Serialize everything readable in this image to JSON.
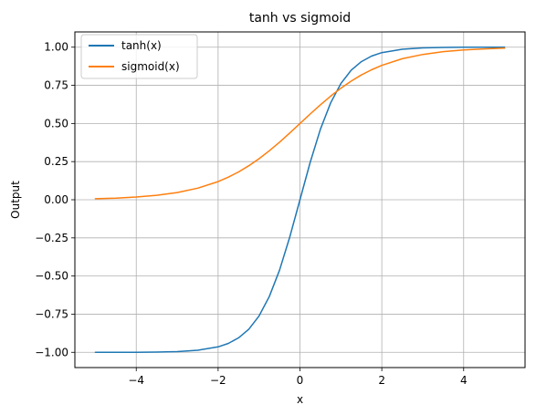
{
  "chart_data": {
    "type": "line",
    "title": "tanh vs sigmoid",
    "xlabel": "x",
    "ylabel": "Output",
    "xlim": [
      -5.5,
      5.5
    ],
    "ylim": [
      -1.1,
      1.1
    ],
    "grid": true,
    "legend_position": "upper-left",
    "x_ticks": [
      -4,
      -2,
      0,
      2,
      4
    ],
    "x_tick_labels": [
      "−4",
      "−2",
      "0",
      "2",
      "4"
    ],
    "y_ticks": [
      -1.0,
      -0.75,
      -0.5,
      -0.25,
      0.0,
      0.25,
      0.5,
      0.75,
      1.0
    ],
    "y_tick_labels": [
      "−1.00",
      "−0.75",
      "−0.50",
      "−0.25",
      "0.00",
      "0.25",
      "0.50",
      "0.75",
      "1.00"
    ],
    "x": [
      -5,
      -4.5,
      -4,
      -3.5,
      -3,
      -2.5,
      -2,
      -1.75,
      -1.5,
      -1.25,
      -1,
      -0.75,
      -0.5,
      -0.25,
      0,
      0.25,
      0.5,
      0.75,
      1,
      1.25,
      1.5,
      1.75,
      2,
      2.5,
      3,
      3.5,
      4,
      4.5,
      5
    ],
    "series": [
      {
        "name": "tanh(x)",
        "color": "#1f77b4",
        "values": [
          -0.9999,
          -0.9998,
          -0.9993,
          -0.9982,
          -0.9951,
          -0.9866,
          -0.964,
          -0.9414,
          -0.9051,
          -0.8483,
          -0.7616,
          -0.6351,
          -0.4621,
          -0.2449,
          0.0,
          0.2449,
          0.4621,
          0.6351,
          0.7616,
          0.8483,
          0.9051,
          0.9414,
          0.964,
          0.9866,
          0.9951,
          0.9982,
          0.9993,
          0.9998,
          0.9999
        ]
      },
      {
        "name": "sigmoid(x)",
        "color": "#ff7f0e",
        "values": [
          0.0067,
          0.011,
          0.018,
          0.0293,
          0.0474,
          0.0759,
          0.1192,
          0.148,
          0.1824,
          0.2227,
          0.2689,
          0.3208,
          0.3775,
          0.4378,
          0.5,
          0.5622,
          0.6225,
          0.6792,
          0.7311,
          0.7773,
          0.8176,
          0.852,
          0.8808,
          0.9241,
          0.9526,
          0.9707,
          0.982,
          0.989,
          0.9933
        ]
      }
    ]
  }
}
